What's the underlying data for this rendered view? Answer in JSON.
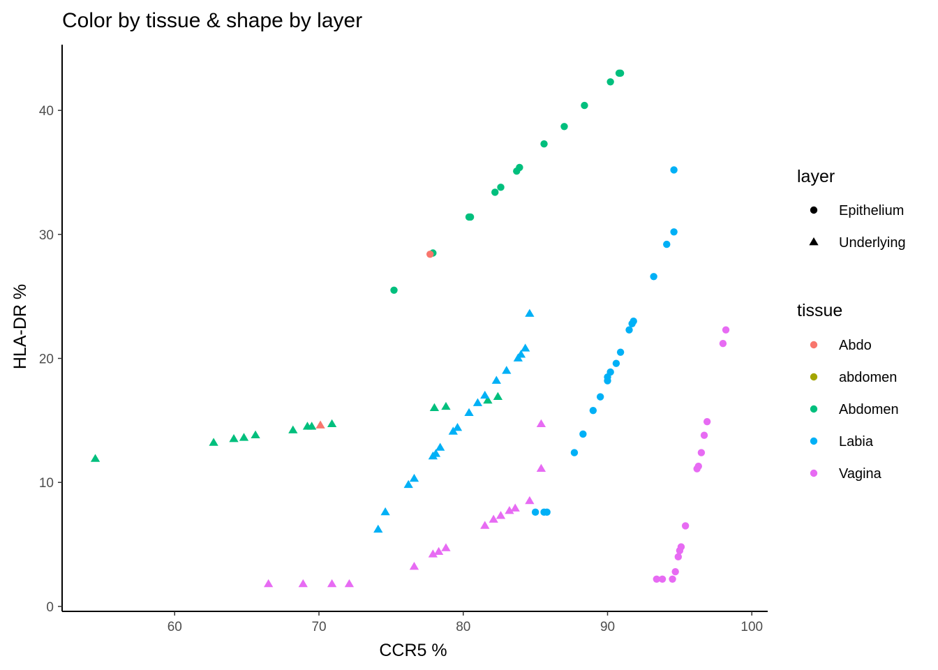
{
  "chart_data": {
    "type": "scatter",
    "title": "Color by tissue & shape by layer",
    "xlabel": "CCR5 %",
    "ylabel": "HLA-DR %",
    "xlim": [
      52.2,
      101.1
    ],
    "ylim": [
      -0.4,
      45.3
    ],
    "x_ticks": [
      60,
      70,
      80,
      90,
      100
    ],
    "y_ticks": [
      0,
      10,
      20,
      30,
      40
    ],
    "grid": false,
    "legend_position": "right",
    "legends": {
      "layer": {
        "title": "layer",
        "entries": [
          {
            "label": "Epithelium",
            "shape": "circle"
          },
          {
            "label": "Underlying",
            "shape": "triangle"
          }
        ]
      },
      "tissue": {
        "title": "tissue",
        "entries": [
          {
            "label": "Abdo",
            "color": "#F8766D"
          },
          {
            "label": "abdomen",
            "color": "#A3A500"
          },
          {
            "label": "Abdomen",
            "color": "#00BF7D"
          },
          {
            "label": "Labia",
            "color": "#00B0F6"
          },
          {
            "label": "Vagina",
            "color": "#E76BF3"
          }
        ]
      }
    },
    "series": [
      {
        "tissue": "Abdomen",
        "layer": "Epithelium",
        "points": [
          [
            75.2,
            25.5
          ],
          [
            77.9,
            28.5
          ],
          [
            80.4,
            31.4
          ],
          [
            80.5,
            31.4
          ],
          [
            82.2,
            33.4
          ],
          [
            82.6,
            33.8
          ],
          [
            83.7,
            35.1
          ],
          [
            83.9,
            35.4
          ],
          [
            85.6,
            37.3
          ],
          [
            87.0,
            38.7
          ],
          [
            88.4,
            40.4
          ],
          [
            90.2,
            42.3
          ],
          [
            90.8,
            43.0
          ],
          [
            90.9,
            43.0
          ]
        ]
      },
      {
        "tissue": "Abdo",
        "layer": "Epithelium",
        "points": [
          [
            77.7,
            28.4
          ]
        ]
      },
      {
        "tissue": "Abdomen",
        "layer": "Underlying",
        "points": [
          [
            54.5,
            11.9
          ],
          [
            62.7,
            13.2
          ],
          [
            64.1,
            13.5
          ],
          [
            64.8,
            13.6
          ],
          [
            65.6,
            13.8
          ],
          [
            68.2,
            14.2
          ],
          [
            69.2,
            14.5
          ],
          [
            69.5,
            14.5
          ],
          [
            70.9,
            14.7
          ],
          [
            78.0,
            16.0
          ],
          [
            78.8,
            16.1
          ],
          [
            81.7,
            16.6
          ],
          [
            82.4,
            16.9
          ]
        ]
      },
      {
        "tissue": "Abdo",
        "layer": "Underlying",
        "points": [
          [
            70.1,
            14.6
          ]
        ]
      },
      {
        "tissue": "Labia",
        "layer": "Epithelium",
        "points": [
          [
            94.6,
            35.2
          ],
          [
            94.6,
            30.2
          ],
          [
            94.1,
            29.2
          ],
          [
            93.2,
            26.6
          ],
          [
            91.8,
            23.0
          ],
          [
            91.7,
            22.8
          ],
          [
            91.5,
            22.3
          ],
          [
            90.9,
            20.5
          ],
          [
            90.6,
            19.6
          ],
          [
            90.2,
            18.9
          ],
          [
            90.0,
            18.5
          ],
          [
            90.0,
            18.2
          ],
          [
            89.5,
            16.9
          ],
          [
            89.0,
            15.8
          ],
          [
            88.3,
            13.9
          ],
          [
            87.7,
            12.4
          ],
          [
            85.0,
            7.6
          ],
          [
            85.6,
            7.6
          ],
          [
            85.8,
            7.6
          ]
        ]
      },
      {
        "tissue": "Labia",
        "layer": "Underlying",
        "points": [
          [
            84.6,
            23.6
          ],
          [
            84.3,
            20.8
          ],
          [
            84.0,
            20.3
          ],
          [
            83.8,
            20.0
          ],
          [
            83.0,
            19.0
          ],
          [
            82.3,
            18.2
          ],
          [
            81.5,
            17.0
          ],
          [
            81.0,
            16.4
          ],
          [
            80.4,
            15.6
          ],
          [
            79.6,
            14.4
          ],
          [
            79.3,
            14.1
          ],
          [
            78.4,
            12.8
          ],
          [
            78.1,
            12.3
          ],
          [
            77.9,
            12.1
          ],
          [
            76.6,
            10.3
          ],
          [
            76.2,
            9.8
          ],
          [
            74.6,
            7.6
          ],
          [
            74.1,
            6.2
          ]
        ]
      },
      {
        "tissue": "Vagina",
        "layer": "Epithelium",
        "points": [
          [
            98.2,
            22.3
          ],
          [
            98.0,
            21.2
          ],
          [
            96.9,
            14.9
          ],
          [
            96.7,
            13.8
          ],
          [
            96.5,
            12.4
          ],
          [
            96.3,
            11.3
          ],
          [
            96.2,
            11.1
          ],
          [
            95.4,
            6.5
          ],
          [
            95.1,
            4.8
          ],
          [
            95.0,
            4.5
          ],
          [
            94.9,
            4.0
          ],
          [
            94.7,
            2.8
          ],
          [
            94.5,
            2.2
          ],
          [
            93.8,
            2.2
          ],
          [
            93.4,
            2.2
          ]
        ]
      },
      {
        "tissue": "Vagina",
        "layer": "Underlying",
        "points": [
          [
            85.4,
            14.7
          ],
          [
            85.4,
            11.1
          ],
          [
            84.6,
            8.5
          ],
          [
            83.6,
            7.9
          ],
          [
            83.2,
            7.7
          ],
          [
            82.6,
            7.3
          ],
          [
            82.1,
            7.0
          ],
          [
            81.5,
            6.5
          ],
          [
            78.8,
            4.7
          ],
          [
            78.3,
            4.4
          ],
          [
            77.9,
            4.2
          ],
          [
            76.6,
            3.2
          ],
          [
            66.5,
            1.8
          ],
          [
            68.9,
            1.8
          ],
          [
            70.9,
            1.8
          ],
          [
            72.1,
            1.8
          ]
        ]
      }
    ]
  }
}
